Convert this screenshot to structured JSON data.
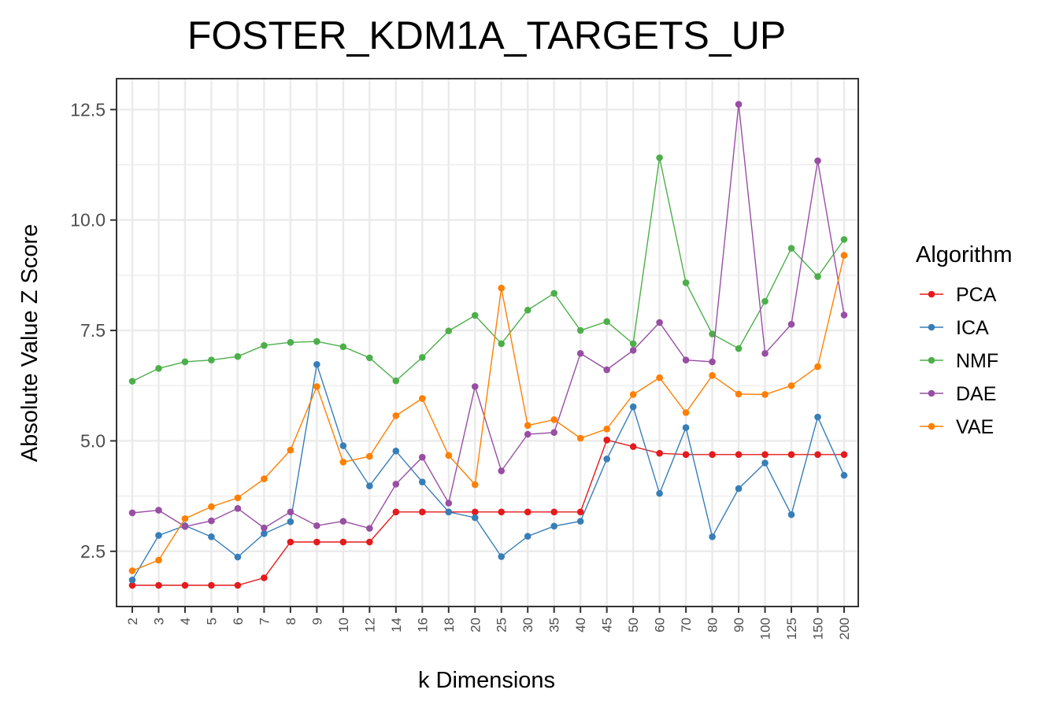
{
  "chart_data": {
    "type": "line",
    "title": "FOSTER_KDM1A_TARGETS_UP",
    "xlabel": "k Dimensions",
    "ylabel": "Absolute Value Z Score",
    "ylim": [
      1.25,
      13.2
    ],
    "yticks": [
      2.5,
      5.0,
      7.5,
      10.0,
      12.5
    ],
    "ytick_labels": [
      "2.5",
      "5.0",
      "7.5",
      "10.0",
      "12.5"
    ],
    "categories": [
      "2",
      "3",
      "4",
      "5",
      "6",
      "7",
      "8",
      "9",
      "10",
      "12",
      "14",
      "16",
      "18",
      "20",
      "25",
      "30",
      "35",
      "40",
      "45",
      "50",
      "60",
      "70",
      "80",
      "90",
      "100",
      "125",
      "150",
      "200"
    ],
    "legend_title": "Algorithm",
    "legend_position": "right",
    "grid": true,
    "series": [
      {
        "name": "PCA",
        "color": "#e41a1c",
        "values": [
          1.73,
          1.73,
          1.73,
          1.73,
          1.73,
          1.9,
          2.71,
          2.71,
          2.71,
          2.71,
          3.39,
          3.39,
          3.39,
          3.39,
          3.39,
          3.39,
          3.39,
          3.39,
          5.02,
          4.87,
          4.72,
          4.69,
          4.69,
          4.69,
          4.69,
          4.69,
          4.69,
          4.69
        ]
      },
      {
        "name": "ICA",
        "color": "#377eb8",
        "values": [
          1.85,
          2.86,
          3.08,
          2.83,
          2.37,
          2.9,
          3.17,
          6.73,
          4.89,
          3.98,
          4.77,
          4.07,
          3.39,
          3.26,
          2.38,
          2.84,
          3.07,
          3.18,
          4.59,
          5.77,
          3.81,
          5.3,
          2.83,
          3.92,
          4.5,
          3.33,
          5.54,
          4.22
        ]
      },
      {
        "name": "NMF",
        "color": "#4daf4a",
        "values": [
          6.35,
          6.64,
          6.79,
          6.83,
          6.91,
          7.16,
          7.23,
          7.25,
          7.13,
          6.88,
          6.36,
          6.89,
          7.49,
          7.84,
          7.2,
          7.96,
          8.34,
          7.5,
          7.7,
          7.2,
          11.41,
          8.58,
          7.42,
          7.09,
          8.16,
          9.36,
          8.72,
          9.56
        ]
      },
      {
        "name": "DAE",
        "color": "#984ea3",
        "values": [
          3.37,
          3.43,
          3.06,
          3.19,
          3.47,
          3.03,
          3.39,
          3.08,
          3.18,
          3.02,
          4.02,
          4.63,
          3.59,
          6.23,
          4.32,
          5.15,
          5.19,
          6.98,
          6.61,
          7.05,
          7.68,
          6.83,
          6.79,
          12.62,
          6.98,
          7.64,
          11.34,
          7.85
        ]
      },
      {
        "name": "VAE",
        "color": "#ff7f00",
        "values": [
          2.06,
          2.3,
          3.24,
          3.51,
          3.71,
          4.14,
          4.79,
          6.23,
          4.52,
          4.65,
          5.57,
          5.96,
          4.67,
          4.01,
          8.46,
          5.35,
          5.48,
          5.06,
          5.27,
          6.05,
          6.43,
          5.64,
          6.48,
          6.06,
          6.05,
          6.25,
          6.68,
          9.2
        ]
      }
    ]
  }
}
